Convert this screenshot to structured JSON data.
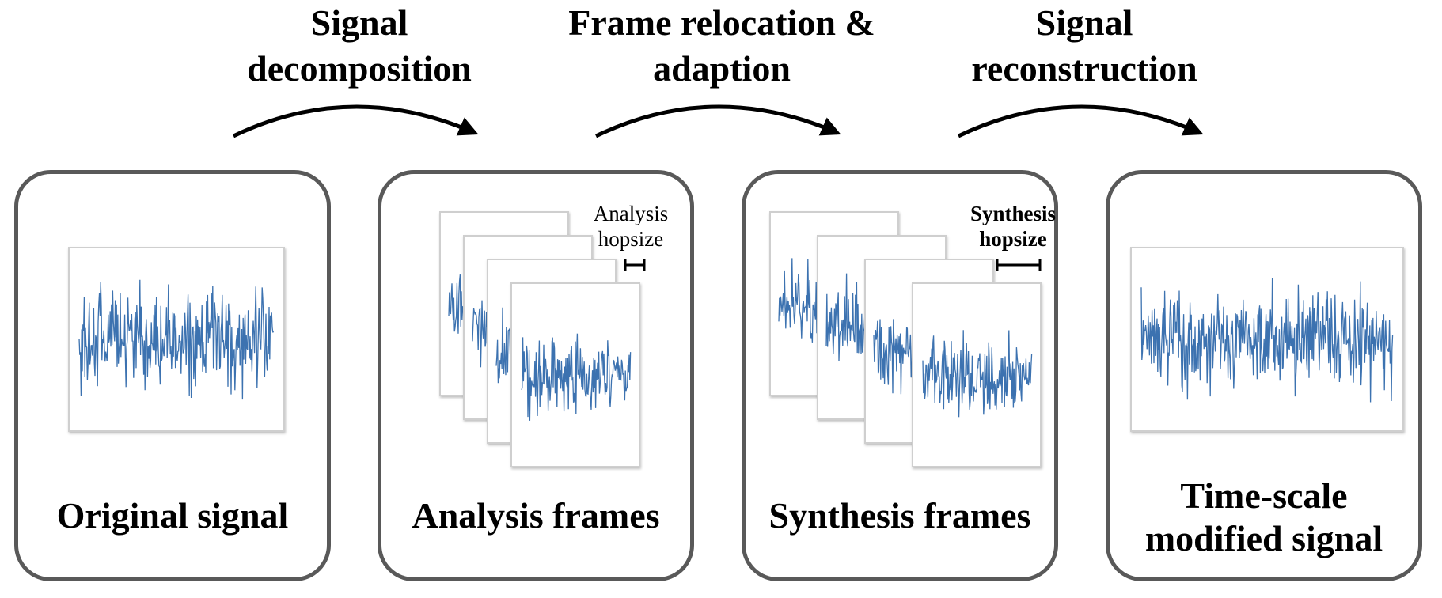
{
  "steps": [
    {
      "label_line1": "Signal",
      "label_line2": "decomposition"
    },
    {
      "label_line1": "Frame relocation &",
      "label_line2": "adaption"
    },
    {
      "label_line1": "Signal",
      "label_line2": "reconstruction"
    }
  ],
  "panels": {
    "original": {
      "caption": "Original signal"
    },
    "analysis": {
      "caption": "Analysis frames",
      "hop_line1": "Analysis",
      "hop_line2": "hopsize"
    },
    "synthesis": {
      "caption": "Synthesis frames",
      "hop_line1": "Synthesis",
      "hop_line2": "hopsize"
    },
    "modified": {
      "caption_line1": "Time-scale",
      "caption_line2": "modified signal"
    }
  },
  "colors": {
    "waveform": "#3c72b0",
    "panel_border": "#595959",
    "arrow": "#000000"
  }
}
